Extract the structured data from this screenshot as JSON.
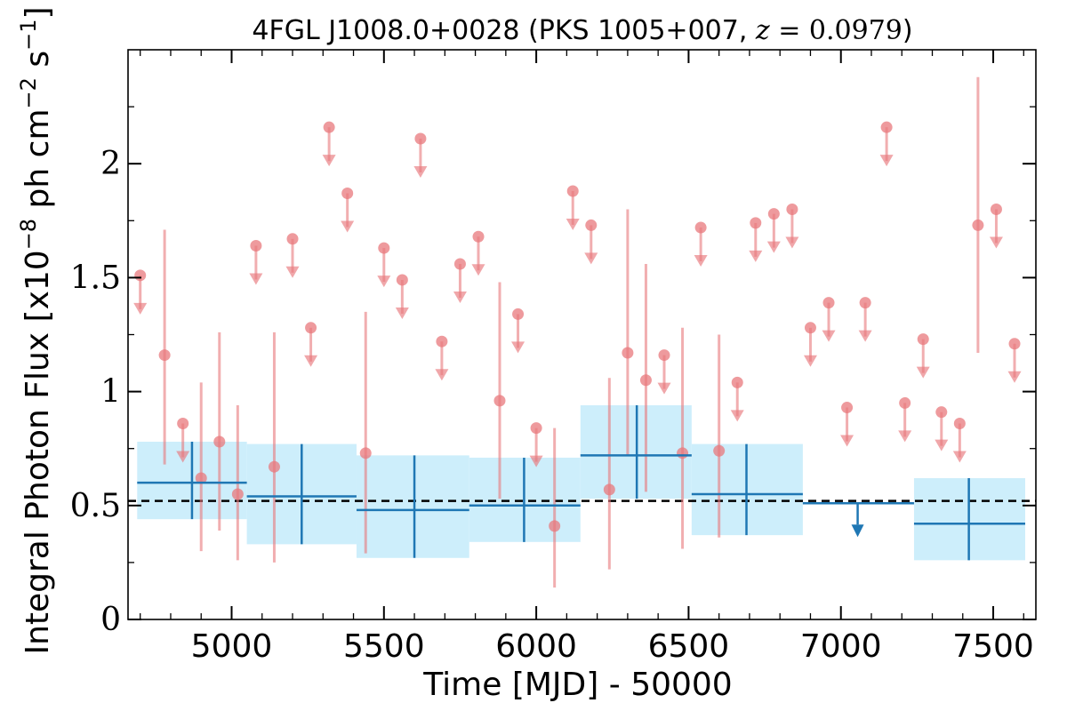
{
  "chart_data": {
    "type": "scatter",
    "title": "4FGL J1008.0+0028 (PKS 1005+007, z = 0.0979)",
    "xlabel": "Time [MJD] - 50000",
    "ylabel": "Integral Photon Flux [x10^-8 ph cm^-2 s^-1]",
    "xlim": [
      4660,
      7640
    ],
    "ylim": [
      0,
      2.5
    ],
    "x_ticks": [
      5000,
      5500,
      6000,
      6500,
      7000,
      7500
    ],
    "x_tick_labels": [
      "5000",
      "5500",
      "6000",
      "6500",
      "7000",
      "7500"
    ],
    "y_ticks": [
      0,
      0.5,
      1,
      1.5,
      2
    ],
    "y_tick_labels": [
      "0",
      "0.5",
      "1",
      "1.5",
      "2"
    ],
    "reference_line": 0.52,
    "colors": {
      "short_bins": "#e8787c",
      "long_bins": "#1f77b4",
      "long_bins_band": "#cdeefb",
      "reference_line": "#000000"
    },
    "short_bin_detections": [
      {
        "x": 4780,
        "y": 1.16,
        "ylo": 0.68,
        "yhi": 1.71
      },
      {
        "x": 4900,
        "y": 0.62,
        "ylo": 0.3,
        "yhi": 1.04
      },
      {
        "x": 4960,
        "y": 0.78,
        "ylo": 0.39,
        "yhi": 1.26
      },
      {
        "x": 5020,
        "y": 0.55,
        "ylo": 0.26,
        "yhi": 0.94
      },
      {
        "x": 5140,
        "y": 0.67,
        "ylo": 0.25,
        "yhi": 1.26
      },
      {
        "x": 5440,
        "y": 0.73,
        "ylo": 0.29,
        "yhi": 1.35
      },
      {
        "x": 5880,
        "y": 0.96,
        "ylo": 0.53,
        "yhi": 1.48
      },
      {
        "x": 6060,
        "y": 0.41,
        "ylo": 0.14,
        "yhi": 0.84
      },
      {
        "x": 6240,
        "y": 0.57,
        "ylo": 0.22,
        "yhi": 1.06
      },
      {
        "x": 6300,
        "y": 1.17,
        "ylo": 0.72,
        "yhi": 1.8
      },
      {
        "x": 6360,
        "y": 1.05,
        "ylo": 0.56,
        "yhi": 1.56
      },
      {
        "x": 6480,
        "y": 0.73,
        "ylo": 0.31,
        "yhi": 1.28
      },
      {
        "x": 6600,
        "y": 0.74,
        "ylo": 0.36,
        "yhi": 1.25
      },
      {
        "x": 7450,
        "y": 1.73,
        "ylo": 1.17,
        "yhi": 2.38
      }
    ],
    "short_bin_upper_limits": [
      {
        "x": 4700,
        "y": 1.51
      },
      {
        "x": 4840,
        "y": 0.86
      },
      {
        "x": 5080,
        "y": 1.64
      },
      {
        "x": 5200,
        "y": 1.67
      },
      {
        "x": 5260,
        "y": 1.28
      },
      {
        "x": 5320,
        "y": 2.16
      },
      {
        "x": 5380,
        "y": 1.87
      },
      {
        "x": 5500,
        "y": 1.63
      },
      {
        "x": 5560,
        "y": 1.49
      },
      {
        "x": 5620,
        "y": 2.11
      },
      {
        "x": 5690,
        "y": 1.22
      },
      {
        "x": 5750,
        "y": 1.56
      },
      {
        "x": 5810,
        "y": 1.68
      },
      {
        "x": 5940,
        "y": 1.34
      },
      {
        "x": 6000,
        "y": 0.84
      },
      {
        "x": 6120,
        "y": 1.88
      },
      {
        "x": 6180,
        "y": 1.73
      },
      {
        "x": 6420,
        "y": 1.16
      },
      {
        "x": 6540,
        "y": 1.72
      },
      {
        "x": 6660,
        "y": 1.04
      },
      {
        "x": 6720,
        "y": 1.74
      },
      {
        "x": 6780,
        "y": 1.78
      },
      {
        "x": 6840,
        "y": 1.8
      },
      {
        "x": 6900,
        "y": 1.28
      },
      {
        "x": 6960,
        "y": 1.39
      },
      {
        "x": 7020,
        "y": 0.93
      },
      {
        "x": 7080,
        "y": 1.39
      },
      {
        "x": 7150,
        "y": 2.16
      },
      {
        "x": 7210,
        "y": 0.95
      },
      {
        "x": 7270,
        "y": 1.23
      },
      {
        "x": 7330,
        "y": 0.91
      },
      {
        "x": 7390,
        "y": 0.86
      },
      {
        "x": 7510,
        "y": 1.8
      },
      {
        "x": 7570,
        "y": 1.21
      }
    ],
    "long_bins": [
      {
        "xmin": 4690,
        "xmax": 5050,
        "x": 4870,
        "y": 0.6,
        "ylo": 0.44,
        "yhi": 0.78
      },
      {
        "xmin": 5050,
        "xmax": 5410,
        "x": 5230,
        "y": 0.54,
        "ylo": 0.33,
        "yhi": 0.77
      },
      {
        "xmin": 5410,
        "xmax": 5780,
        "x": 5600,
        "y": 0.48,
        "ylo": 0.27,
        "yhi": 0.72
      },
      {
        "xmin": 5780,
        "xmax": 6145,
        "x": 5960,
        "y": 0.5,
        "ylo": 0.34,
        "yhi": 0.71
      },
      {
        "xmin": 6145,
        "xmax": 6510,
        "x": 6330,
        "y": 0.72,
        "ylo": 0.53,
        "yhi": 0.94
      },
      {
        "xmin": 6510,
        "xmax": 6875,
        "x": 6690,
        "y": 0.55,
        "ylo": 0.37,
        "yhi": 0.77
      },
      {
        "xmin": 7240,
        "xmax": 7605,
        "x": 7420,
        "y": 0.42,
        "ylo": 0.26,
        "yhi": 0.62
      }
    ],
    "long_bin_upper_limits": [
      {
        "xmin": 6875,
        "xmax": 7240,
        "x": 7055,
        "y": 0.51
      }
    ]
  }
}
